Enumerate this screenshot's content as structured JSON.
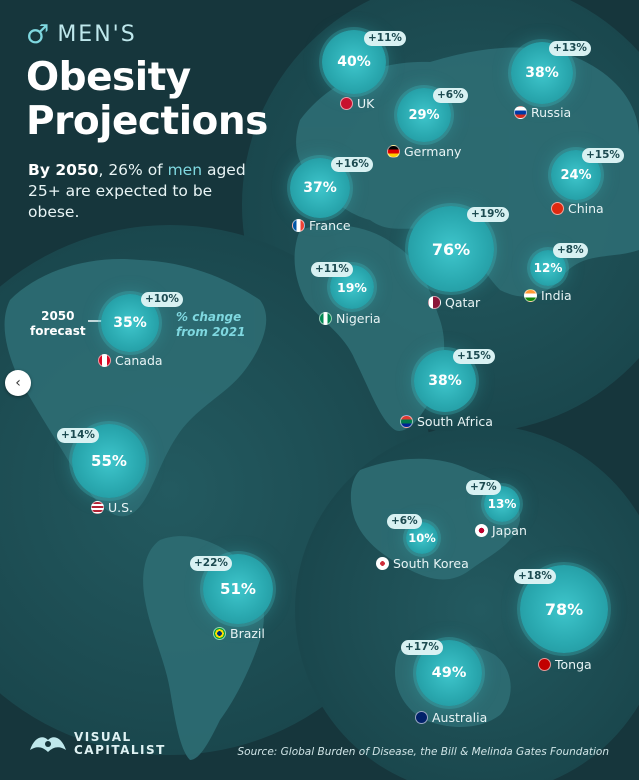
{
  "title": {
    "symbol": "♂",
    "line1": "MEN'S",
    "line2": "Obesity",
    "line3": "Projections"
  },
  "subtitle": {
    "bold": "By 2050",
    "part1": ", 26% of ",
    "accent": "men",
    "part2": " aged 25+ are expected to be obese."
  },
  "legend": {
    "left_line1": "2050",
    "left_line2": "forecast",
    "right_line1": "% change",
    "right_line2": "from 2021"
  },
  "countries": [
    {
      "name": "UK",
      "value": "40%",
      "change": "+11%",
      "flag": "uk-flag-icon",
      "color": "#c8102e"
    },
    {
      "name": "Russia",
      "value": "38%",
      "change": "+13%",
      "flag": "russia-flag-icon",
      "color": "#0039a6"
    },
    {
      "name": "Germany",
      "value": "29%",
      "change": "+6%",
      "flag": "germany-flag-icon",
      "color": "#dd0000"
    },
    {
      "name": "China",
      "value": "24%",
      "change": "+15%",
      "flag": "china-flag-icon",
      "color": "#de2910"
    },
    {
      "name": "France",
      "value": "37%",
      "change": "+16%",
      "flag": "france-flag-icon",
      "color": "#0055a4"
    },
    {
      "name": "Qatar",
      "value": "76%",
      "change": "+19%",
      "flag": "qatar-flag-icon",
      "color": "#8a1538"
    },
    {
      "name": "India",
      "value": "12%",
      "change": "+8%",
      "flag": "india-flag-icon",
      "color": "#ff9933"
    },
    {
      "name": "Nigeria",
      "value": "19%",
      "change": "+11%",
      "flag": "nigeria-flag-icon",
      "color": "#008751"
    },
    {
      "name": "Canada",
      "value": "35%",
      "change": "+10%",
      "flag": "canada-flag-icon",
      "color": "#d80621"
    },
    {
      "name": "South Africa",
      "value": "38%",
      "change": "+15%",
      "flag": "south-africa-flag-icon",
      "color": "#007a4d"
    },
    {
      "name": "U.S.",
      "value": "55%",
      "change": "+14%",
      "flag": "us-flag-icon",
      "color": "#3c3b6e"
    },
    {
      "name": "Japan",
      "value": "13%",
      "change": "+7%",
      "flag": "japan-flag-icon",
      "color": "#bc002d"
    },
    {
      "name": "South Korea",
      "value": "10%",
      "change": "+6%",
      "flag": "south-korea-flag-icon",
      "color": "#cd2e3a"
    },
    {
      "name": "Brazil",
      "value": "51%",
      "change": "+22%",
      "flag": "brazil-flag-icon",
      "color": "#009c3b"
    },
    {
      "name": "Tonga",
      "value": "78%",
      "change": "+18%",
      "flag": "tonga-flag-icon",
      "color": "#c10000"
    },
    {
      "name": "Australia",
      "value": "49%",
      "change": "+17%",
      "flag": "australia-flag-icon",
      "color": "#012169"
    }
  ],
  "logo": {
    "line1": "VISUAL",
    "line2": "CAPITALIST"
  },
  "source": "Source: Global Burden of Disease, the Bill & Melinda Gates Foundation",
  "nav": {
    "prev_icon": "‹"
  },
  "colors": {
    "background": "#16363c",
    "globe": "#1d4a50",
    "land": "#2c6a70",
    "bubble": "#2aa9b0",
    "accent": "#7fd8e0"
  }
}
